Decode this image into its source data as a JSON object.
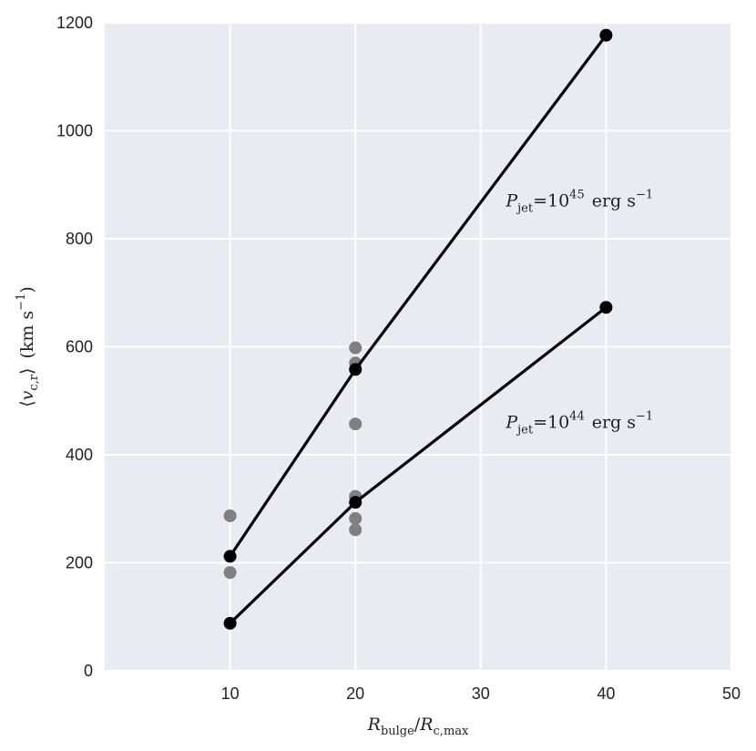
{
  "chart_data": {
    "type": "scatter",
    "title": "",
    "xlabel": {
      "main": "R",
      "sub": "bulge",
      "sep": "/",
      "main2": "R",
      "sub2": "c,max"
    },
    "ylabel": {
      "left": "⟨",
      "var": "v",
      "sub": "c,r",
      "right": "⟩",
      "unit_open": "(km s",
      "unit_exp": "−1",
      "unit_close": ")"
    },
    "xlim": [
      0,
      50
    ],
    "ylim": [
      0,
      1200
    ],
    "xticks": [
      10,
      20,
      30,
      40,
      50
    ],
    "yticks": [
      0,
      200,
      400,
      600,
      800,
      1000,
      1200
    ],
    "grid": true,
    "colors": {
      "background": "#eaeaf2",
      "grid": "#ffffff",
      "line": "#000000",
      "individual": "#808080"
    },
    "series": [
      {
        "x": [
          10,
          20,
          40
        ],
        "y": [
          212,
          558,
          1177
        ]
      },
      {
        "x": [
          10,
          20,
          40
        ],
        "y": [
          88,
          312,
          673
        ]
      }
    ],
    "individual_points": [
      {
        "x": 10,
        "y": 287
      },
      {
        "x": 10,
        "y": 182
      },
      {
        "x": 20,
        "y": 598
      },
      {
        "x": 20,
        "y": 570
      },
      {
        "x": 20,
        "y": 457
      },
      {
        "x": 20,
        "y": 323
      },
      {
        "x": 20,
        "y": 282
      },
      {
        "x": 20,
        "y": 261
      }
    ],
    "annotations": [
      {
        "var": "P",
        "sub": "jet",
        "eq": "=10",
        "exp": "45",
        "unit": "erg s",
        "unit_exp": "−1",
        "x": 32,
        "y": 860
      },
      {
        "var": "P",
        "sub": "jet",
        "eq": "=10",
        "exp": "44",
        "unit": "erg s",
        "unit_exp": "−1",
        "x": 32,
        "y": 450
      }
    ]
  }
}
